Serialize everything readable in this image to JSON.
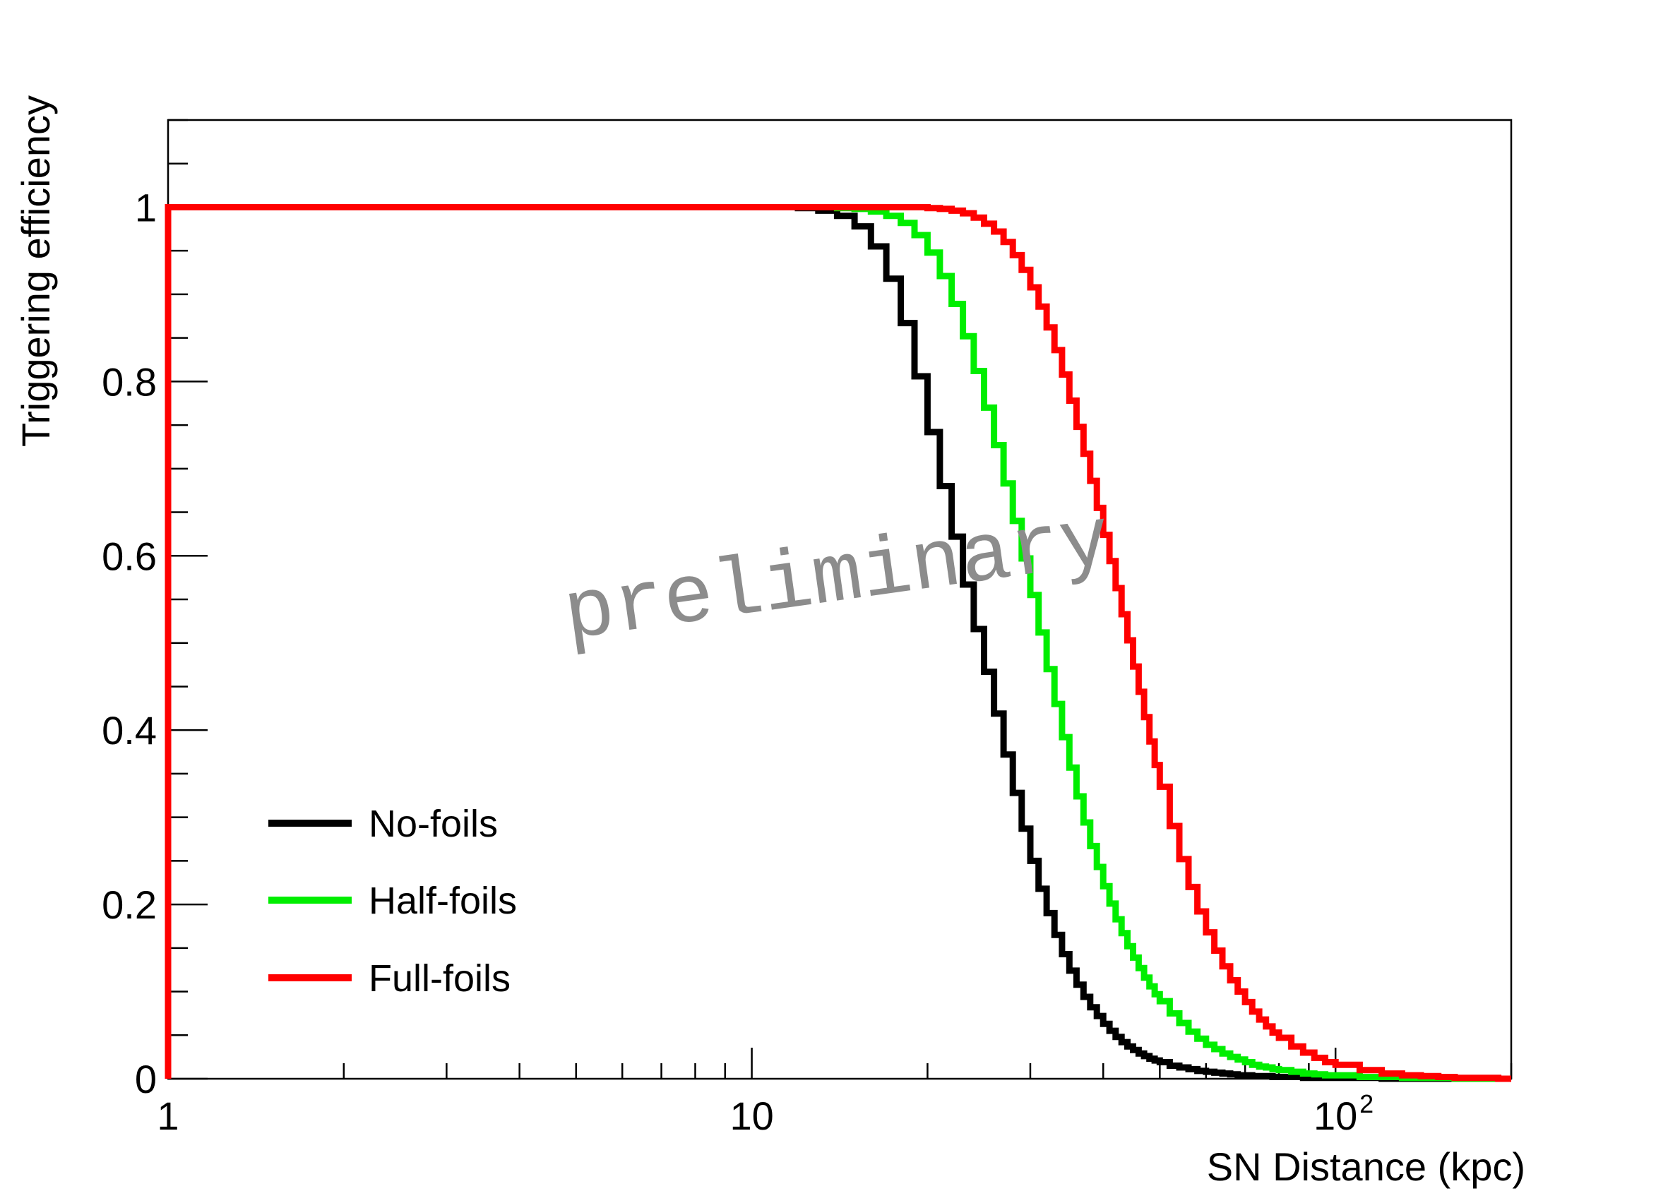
{
  "chart_data": {
    "type": "line",
    "title": "",
    "xlabel": "SN Distance (kpc)",
    "ylabel": "Triggering efficiency",
    "xscale": "log",
    "xlim": [
      1,
      200
    ],
    "ylim": [
      0,
      1.1
    ],
    "x_ticks": [
      {
        "value": 1,
        "label": "1"
      },
      {
        "value": 10,
        "label": "10"
      },
      {
        "value": 100,
        "label": "10",
        "sup": "2"
      }
    ],
    "y_ticks": [
      {
        "value": 0,
        "label": "0"
      },
      {
        "value": 0.2,
        "label": "0.2"
      },
      {
        "value": 0.4,
        "label": "0.4"
      },
      {
        "value": 0.6,
        "label": "0.6"
      },
      {
        "value": 0.8,
        "label": "0.8"
      },
      {
        "value": 1,
        "label": "1"
      }
    ],
    "grid": false,
    "legend_position": "bottom-left",
    "annotation": "preliminary",
    "x": [
      1,
      10,
      12,
      13,
      14,
      15,
      16,
      17,
      18,
      19,
      20,
      21,
      22,
      23,
      24,
      25,
      26,
      27,
      28,
      29,
      30,
      31,
      32,
      33,
      34,
      35,
      36,
      37,
      38,
      39,
      40,
      41,
      42,
      43,
      44,
      45,
      46,
      47,
      48,
      49,
      50,
      52,
      54,
      56,
      58,
      60,
      62,
      64,
      66,
      68,
      70,
      72,
      74,
      76,
      78,
      80,
      84,
      88,
      92,
      96,
      100,
      110,
      120,
      130,
      140,
      150,
      160,
      170,
      180,
      190,
      200
    ],
    "series": [
      {
        "name": "No-foils",
        "color": "#000000",
        "values": [
          1,
          1,
          0.999,
          0.996,
          0.99,
          0.978,
          0.955,
          0.918,
          0.867,
          0.806,
          0.742,
          0.68,
          0.622,
          0.567,
          0.516,
          0.467,
          0.419,
          0.372,
          0.328,
          0.287,
          0.25,
          0.218,
          0.19,
          0.165,
          0.143,
          0.124,
          0.108,
          0.094,
          0.082,
          0.072,
          0.063,
          0.055,
          0.048,
          0.042,
          0.037,
          0.033,
          0.029,
          0.026,
          0.023,
          0.021,
          0.019,
          0.015,
          0.013,
          0.011,
          0.009,
          0.008,
          0.007,
          0.006,
          0.005,
          0.004,
          0.004,
          0.003,
          0.003,
          0.003,
          0.002,
          0.002,
          0.002,
          0.001,
          0.001,
          0.001,
          0.001,
          0.001,
          0,
          0,
          0,
          0,
          0,
          0,
          0,
          0,
          0
        ]
      },
      {
        "name": "Half-foils",
        "color": "#00ee00",
        "values": [
          1,
          1,
          1,
          1,
          0.999,
          0.998,
          0.995,
          0.99,
          0.982,
          0.968,
          0.948,
          0.921,
          0.889,
          0.852,
          0.812,
          0.77,
          0.727,
          0.683,
          0.64,
          0.597,
          0.555,
          0.512,
          0.47,
          0.43,
          0.392,
          0.357,
          0.324,
          0.294,
          0.267,
          0.243,
          0.221,
          0.201,
          0.183,
          0.167,
          0.152,
          0.139,
          0.127,
          0.116,
          0.106,
          0.097,
          0.089,
          0.075,
          0.064,
          0.054,
          0.046,
          0.039,
          0.034,
          0.029,
          0.025,
          0.022,
          0.019,
          0.016,
          0.014,
          0.013,
          0.011,
          0.01,
          0.008,
          0.006,
          0.005,
          0.004,
          0.004,
          0.002,
          0.002,
          0.001,
          0.001,
          0.001,
          0,
          0,
          0,
          0,
          0
        ]
      },
      {
        "name": "Full-foils",
        "color": "#ff0000",
        "values": [
          1,
          1,
          1,
          1,
          1,
          1,
          1,
          1,
          1,
          1,
          0.999,
          0.998,
          0.996,
          0.993,
          0.988,
          0.981,
          0.972,
          0.96,
          0.945,
          0.928,
          0.908,
          0.886,
          0.862,
          0.836,
          0.808,
          0.778,
          0.748,
          0.717,
          0.686,
          0.655,
          0.624,
          0.594,
          0.563,
          0.533,
          0.503,
          0.473,
          0.444,
          0.415,
          0.387,
          0.36,
          0.335,
          0.29,
          0.252,
          0.22,
          0.192,
          0.168,
          0.147,
          0.129,
          0.113,
          0.1,
          0.088,
          0.077,
          0.068,
          0.06,
          0.053,
          0.047,
          0.037,
          0.03,
          0.024,
          0.019,
          0.016,
          0.01,
          0.006,
          0.004,
          0.003,
          0.002,
          0.001,
          0.001,
          0.001,
          0,
          0
        ]
      }
    ]
  }
}
